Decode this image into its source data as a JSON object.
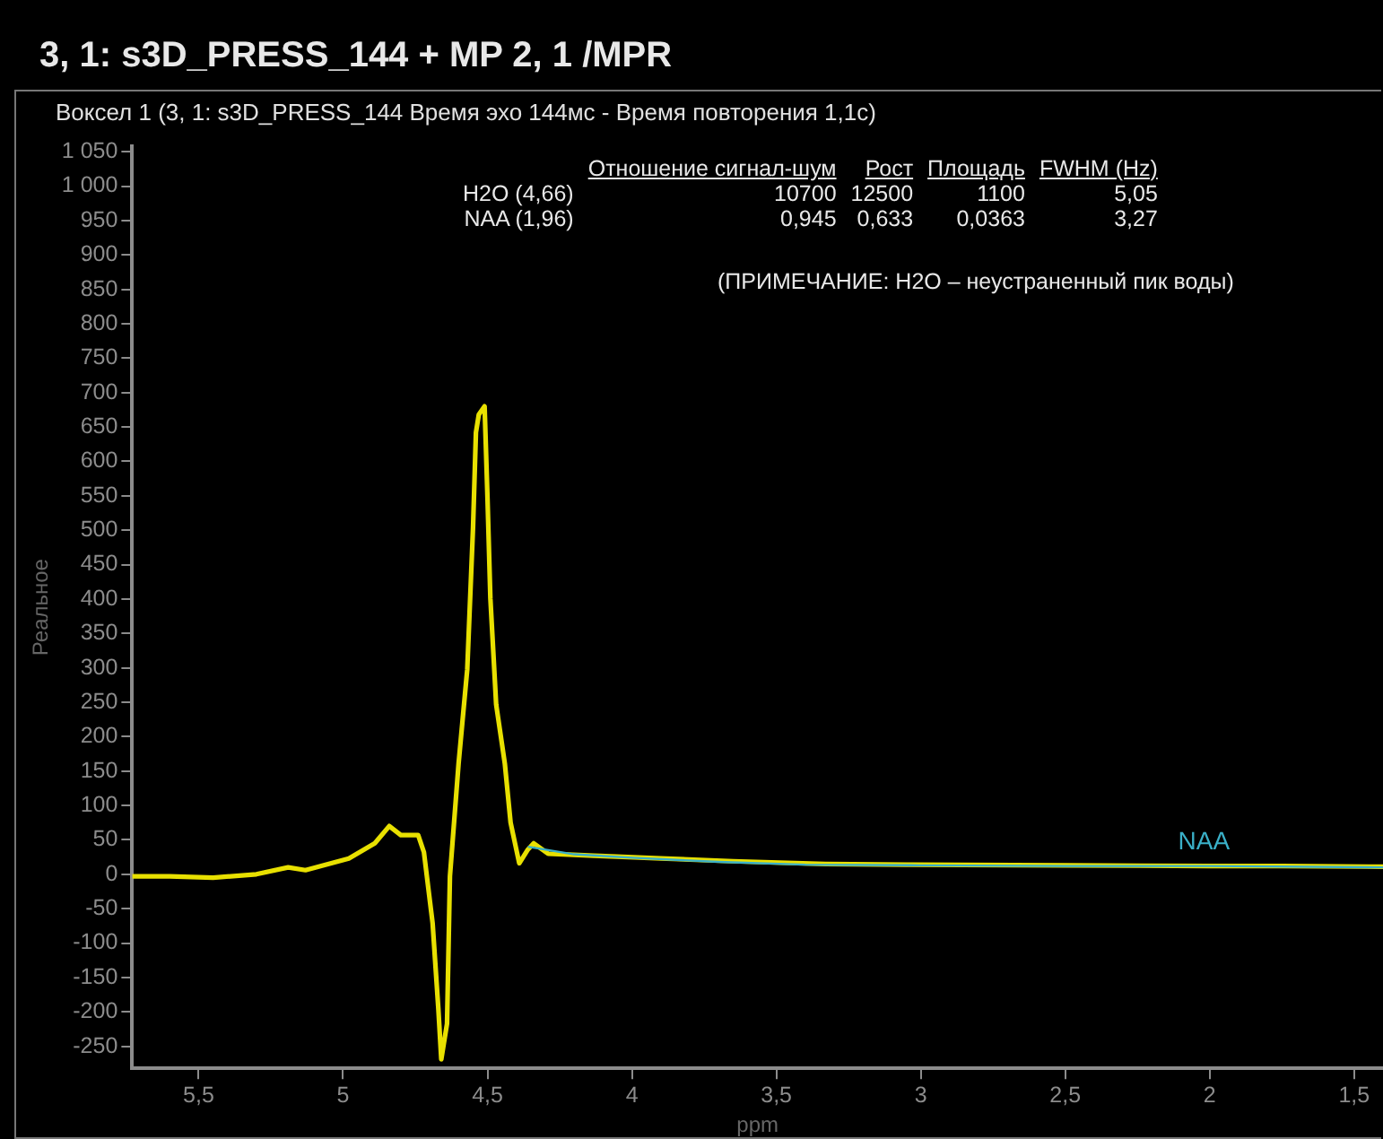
{
  "chart_data": {
    "type": "line",
    "title": "3, 1: s3D_PRESS_144 + MP 2, 1 /MPR",
    "subtitle": "Воксел 1 (3, 1: s3D_PRESS_144 Время эхо 144мс - Время повторения 1,1с)",
    "xlabel": "ppm",
    "ylabel": "Реальное",
    "annotations": [
      "Отношение сигнал-шум",
      "Рост",
      "Площадь",
      "FWHM (Hz)",
      "H2O (4,66)",
      "10700",
      "12500",
      "1100",
      "5,05",
      "NAA (1,96)",
      "0,945",
      "0,633",
      "0,0363",
      "3,27",
      "(ПРИМЕЧАНИЕ: H2O – неустраненный пик воды)",
      {
        "text": "NAA",
        "x": 2.02,
        "y": 12
      }
    ],
    "series": [
      {
        "color": "#e8e000",
        "x": [
          5.73,
          5.6,
          5.45,
          5.3,
          5.19,
          5.13,
          4.98,
          4.89,
          4.84,
          4.8,
          4.74,
          4.72,
          4.69,
          4.67,
          4.66,
          4.64,
          4.63,
          4.6,
          4.57,
          4.55,
          4.54,
          4.53,
          4.51,
          4.5,
          4.49,
          4.47,
          4.44,
          4.42,
          4.39,
          4.36,
          4.34,
          4.29,
          4.13,
          3.9,
          3.65,
          3.33,
          3.05,
          2.5,
          2.0,
          1.75,
          1.4
        ],
        "values": [
          -3,
          -3,
          -5,
          0,
          10,
          6,
          23,
          45,
          70,
          57,
          57,
          32,
          -71,
          -196,
          -269,
          -217,
          -3,
          161,
          298,
          504,
          642,
          668,
          680,
          547,
          401,
          247,
          161,
          75,
          16,
          36,
          45,
          30,
          27,
          23,
          19,
          15,
          14,
          13,
          12,
          12,
          11
        ]
      },
      {
        "color": "#3ab0c8",
        "x": [
          4.36,
          4.2,
          4.0,
          3.7,
          3.4,
          3.0,
          2.5,
          2.0,
          1.4
        ],
        "values": [
          40,
          29,
          24,
          18,
          14,
          13,
          12,
          12,
          10
        ]
      }
    ],
    "xlim": [
      5.73,
      1.4
    ],
    "ylim": [
      -282,
      1058
    ],
    "xticks": [
      {
        "value": 5.5,
        "label": "5,5"
      },
      5,
      {
        "value": 4.5,
        "label": "4,5"
      },
      4,
      {
        "value": 3.5,
        "label": "3,5"
      },
      3,
      {
        "value": 2.5,
        "label": "2,5"
      },
      2,
      {
        "value": 1.5,
        "label": "1,5"
      }
    ],
    "yticks": [
      -250,
      -200,
      -150,
      -100,
      -50,
      0,
      50,
      100,
      150,
      200,
      250,
      300,
      350,
      400,
      450,
      500,
      550,
      600,
      650,
      700,
      750,
      800,
      850,
      900,
      950,
      {
        "value": 1000,
        "label": "1 000"
      },
      {
        "value": 1050,
        "label": "1 050"
      }
    ],
    "grid": false,
    "legend": false,
    "marker": "none",
    "line_style": "solid"
  }
}
